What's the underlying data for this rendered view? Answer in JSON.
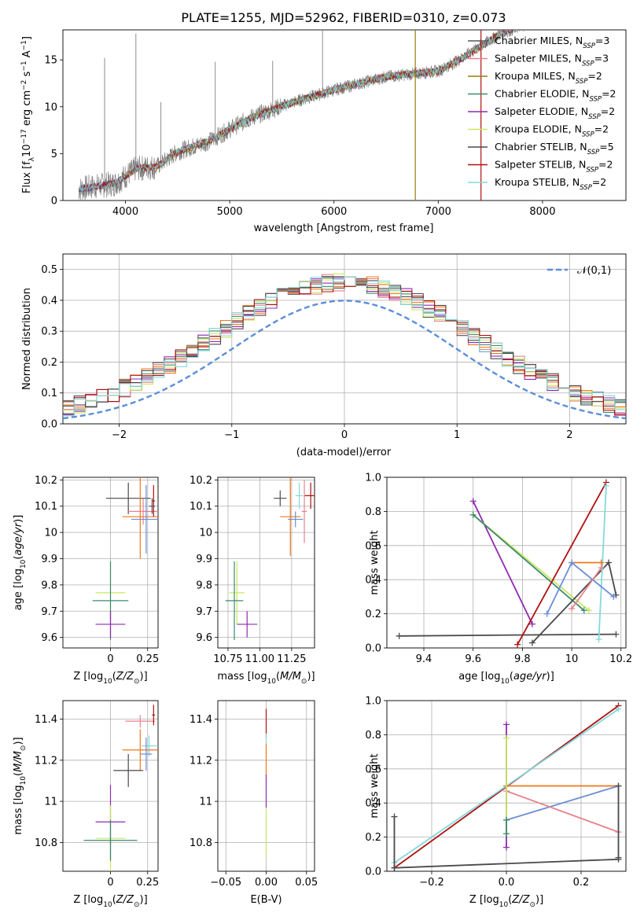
{
  "figure_title": "PLATE=1255, MJD=52962, FIBERID=0310, z=0.073",
  "series_styles": [
    {
      "name": "Chabrier MILES",
      "nssp": "3",
      "color": "#555555"
    },
    {
      "name": "Salpeter MILES",
      "nssp": "3",
      "color": "#e8828c"
    },
    {
      "name": "Kroupa MILES",
      "nssp": "2",
      "color": "#9a7a0a"
    },
    {
      "name": "Chabrier ELODIE",
      "nssp": "2",
      "color": "#3c8a6e"
    },
    {
      "name": "Salpeter ELODIE",
      "nssp": "2",
      "color": "#8e2ab0"
    },
    {
      "name": "Kroupa ELODIE",
      "nssp": "2",
      "color": "#c8e860"
    },
    {
      "name": "Chabrier STELIB",
      "nssp": "5",
      "color": "#4a4a4a"
    },
    {
      "name": "Salpeter STELIB",
      "nssp": "2",
      "color": "#b01010"
    },
    {
      "name": "Kroupa STELIB",
      "nssp": "2",
      "color": "#84d8dc"
    }
  ],
  "chart_data": [
    {
      "id": "spectrum",
      "type": "line",
      "xlabel": "wavelength [Angstrom, rest frame]",
      "ylabel": "Flux [f_λ 10^-17 erg cm^-2 s^-1 A^-1]",
      "xlim": [
        3400,
        8800
      ],
      "ylim": [
        0,
        18.2
      ],
      "xticks": [
        4000,
        5000,
        6000,
        7000,
        8000
      ],
      "yticks": [
        0,
        5,
        10,
        15
      ],
      "data_color": "#808080",
      "continuum": [
        [
          3550,
          1.2
        ],
        [
          3700,
          1.5
        ],
        [
          3900,
          1.8
        ],
        [
          4000,
          2.6
        ],
        [
          4100,
          3.4
        ],
        [
          4300,
          3.6
        ],
        [
          4500,
          5.2
        ],
        [
          4800,
          6.3
        ],
        [
          5000,
          7.6
        ],
        [
          5200,
          8.8
        ],
        [
          5500,
          10.1
        ],
        [
          6000,
          11.8
        ],
        [
          6500,
          13.2
        ],
        [
          7000,
          13.8
        ],
        [
          7200,
          15.0
        ],
        [
          7600,
          17.8
        ],
        [
          8000,
          19.5
        ],
        [
          8800,
          20.5
        ]
      ],
      "lines": [
        {
          "x": 3800,
          "y": 15.2
        },
        {
          "x": 4100,
          "y": 17.8
        },
        {
          "x": 4340,
          "y": 10.5
        },
        {
          "x": 4861,
          "y": 14.8
        },
        {
          "x": 5412,
          "y": 14.9
        },
        {
          "x": 5890,
          "y": 18.2
        }
      ],
      "vlines": [
        {
          "x": 6780,
          "color": "#9a7a0a"
        },
        {
          "x": 7410,
          "color": "#b01010"
        }
      ],
      "model_start": [
        3550,
        3600,
        3700,
        3600,
        3560,
        3880,
        3560,
        3580,
        3560
      ]
    },
    {
      "id": "residuals",
      "type": "bar",
      "xlabel": "(data-model)/error",
      "ylabel": "Normed distribution",
      "xlim": [
        -2.5,
        2.5
      ],
      "ylim": [
        0,
        0.55
      ],
      "xticks": [
        -2,
        -1,
        0,
        1,
        2
      ],
      "yticks": [
        0.0,
        0.1,
        0.2,
        0.3,
        0.4,
        0.5
      ],
      "legend": "𝒩(0,1)",
      "normal_color": "#5b8ed9",
      "bin_width": 0.1,
      "bins_start": -2.5
    },
    {
      "id": "age_vs_z",
      "type": "scatter",
      "xlabel": "Z [log10(Z/Z☉)]",
      "ylabel": "age [log10(age/yr)]",
      "xlim": [
        -0.32,
        0.32
      ],
      "ylim": [
        9.56,
        10.21
      ],
      "xticks": [
        0.0,
        0.25
      ],
      "yticks": [
        9.6,
        9.7,
        9.8,
        9.9,
        10.0,
        10.1,
        10.2
      ],
      "points": [
        {
          "x": 0.12,
          "y": 10.13,
          "ex": 0.15,
          "ey": 0.06,
          "color": "#4a4a4a"
        },
        {
          "x": 0.22,
          "y": 10.08,
          "ex": 0.1,
          "ey": 0.05,
          "color": "#e8828c"
        },
        {
          "x": 0.2,
          "y": 10.06,
          "ex": 0.12,
          "ey": 0.16,
          "color": "#f07818"
        },
        {
          "x": 0.24,
          "y": 10.05,
          "ex": 0.1,
          "ey": 0.13,
          "color": "#6a8ed8"
        },
        {
          "x": 0.29,
          "y": 10.12,
          "ex": 0.01,
          "ey": 0.06,
          "color": "#b01010"
        },
        {
          "x": 0.28,
          "y": 10.1,
          "ex": 0.02,
          "ey": 0.03,
          "color": "#555555"
        },
        {
          "x": 0.0,
          "y": 9.77,
          "ex": 0.1,
          "ey": 0.12,
          "color": "#c8e860"
        },
        {
          "x": 0.0,
          "y": 9.74,
          "ex": 0.12,
          "ey": 0.15,
          "color": "#3c8a6e"
        },
        {
          "x": 0.0,
          "y": 9.65,
          "ex": 0.1,
          "ey": 0.05,
          "color": "#8e2ab0"
        }
      ]
    },
    {
      "id": "age_vs_mass",
      "type": "scatter",
      "xlabel": "mass [log10(M/M☉)]",
      "ylabel": "",
      "xlim": [
        10.67,
        11.43
      ],
      "ylim": [
        9.56,
        10.21
      ],
      "xticks": [
        10.75,
        11.0,
        11.25
      ],
      "xticklabels": [
        "10.75",
        "11.00",
        "11.25"
      ],
      "yticks": [
        9.6,
        9.7,
        9.8,
        9.9,
        10.0,
        10.1,
        10.2
      ],
      "points": [
        {
          "x": 11.16,
          "y": 10.13,
          "ex": 0.05,
          "ey": 0.03,
          "color": "#4a4a4a"
        },
        {
          "x": 11.31,
          "y": 10.14,
          "ex": 0.03,
          "ey": 0.05,
          "color": "#84d8dc"
        },
        {
          "x": 11.24,
          "y": 10.06,
          "ex": 0.08,
          "ey": 0.15,
          "color": "#f07818"
        },
        {
          "x": 11.28,
          "y": 10.05,
          "ex": 0.06,
          "ey": 0.03,
          "color": "#6a8ed8"
        },
        {
          "x": 11.4,
          "y": 10.14,
          "ex": 0.05,
          "ey": 0.05,
          "color": "#b01010"
        },
        {
          "x": 11.35,
          "y": 10.08,
          "ex": 0.02,
          "ey": 0.12,
          "color": "#e8828c"
        },
        {
          "x": 10.82,
          "y": 9.77,
          "ex": 0.06,
          "ey": 0.12,
          "color": "#c8e860"
        },
        {
          "x": 10.8,
          "y": 9.74,
          "ex": 0.07,
          "ey": 0.15,
          "color": "#3c8a6e"
        },
        {
          "x": 10.9,
          "y": 9.65,
          "ex": 0.08,
          "ey": 0.05,
          "color": "#8e2ab0"
        }
      ]
    },
    {
      "id": "weight_vs_age",
      "type": "line",
      "xlabel": "age [log10(age/yr)]",
      "ylabel": "mass weight",
      "xlim": [
        9.25,
        10.22
      ],
      "ylim": [
        0,
        1
      ],
      "xticks": [
        9.4,
        9.6,
        9.8,
        10.0,
        10.2
      ],
      "yticks": [
        0.0,
        0.2,
        0.4,
        0.6,
        0.8,
        1.0
      ],
      "series": [
        {
          "color": "#8e2ab0",
          "points": [
            [
              9.6,
              0.86
            ],
            [
              9.84,
              0.14
            ]
          ]
        },
        {
          "color": "#c8e860",
          "points": [
            [
              9.6,
              0.78
            ],
            [
              10.07,
              0.22
            ]
          ]
        },
        {
          "color": "#3c8a6e",
          "points": [
            [
              9.6,
              0.78
            ],
            [
              10.05,
              0.22
            ]
          ]
        },
        {
          "color": "#4a4a4a",
          "points": [
            [
              9.3,
              0.07
            ],
            [
              10.18,
              0.08
            ]
          ]
        },
        {
          "color": "#4a4a4a",
          "points": [
            [
              9.84,
              0.03
            ],
            [
              10.15,
              0.5
            ],
            [
              10.18,
              0.31
            ]
          ]
        },
        {
          "color": "#b01010",
          "points": [
            [
              9.78,
              0.02
            ],
            [
              10.14,
              0.97
            ]
          ]
        },
        {
          "color": "#84d8dc",
          "points": [
            [
              10.11,
              0.05
            ],
            [
              10.14,
              0.95
            ]
          ]
        },
        {
          "color": "#f07818",
          "points": [
            [
              10.0,
              0.5
            ],
            [
              10.12,
              0.5
            ]
          ]
        },
        {
          "color": "#6a8ed8",
          "points": [
            [
              9.9,
              0.2
            ],
            [
              10.0,
              0.5
            ],
            [
              10.17,
              0.3
            ]
          ]
        },
        {
          "color": "#e8828c",
          "points": [
            [
              10.0,
              0.23
            ],
            [
              10.12,
              0.47
            ]
          ]
        }
      ]
    },
    {
      "id": "mass_vs_z",
      "type": "scatter",
      "xlabel": "Z [log10(Z/Z☉)]",
      "ylabel": "mass [log10(M/M☉)]",
      "xlim": [
        -0.32,
        0.32
      ],
      "ylim": [
        10.66,
        11.49
      ],
      "xticks": [
        0.0,
        0.25
      ],
      "yticks": [
        10.8,
        11.0,
        11.2,
        11.4
      ],
      "points": [
        {
          "x": 0.2,
          "y": 11.39,
          "ex": 0.1,
          "ey": 0.03,
          "color": "#e8828c"
        },
        {
          "x": 0.29,
          "y": 11.42,
          "ex": 0.01,
          "ey": 0.05,
          "color": "#b01010"
        },
        {
          "x": 0.26,
          "y": 11.27,
          "ex": 0.05,
          "ey": 0.05,
          "color": "#84d8dc"
        },
        {
          "x": 0.2,
          "y": 11.25,
          "ex": 0.12,
          "ey": 0.1,
          "color": "#f07818"
        },
        {
          "x": 0.24,
          "y": 11.23,
          "ex": 0.04,
          "ey": 0.08,
          "color": "#6a8ed8"
        },
        {
          "x": 0.12,
          "y": 11.15,
          "ex": 0.1,
          "ey": 0.08,
          "color": "#4a4a4a"
        },
        {
          "x": 0.0,
          "y": 10.9,
          "ex": 0.1,
          "ey": 0.18,
          "color": "#8e2ab0"
        },
        {
          "x": 0.0,
          "y": 10.82,
          "ex": 0.1,
          "ey": 0.16,
          "color": "#c8e860"
        },
        {
          "x": 0.0,
          "y": 10.81,
          "ex": 0.18,
          "ey": 0.1,
          "color": "#3c8a6e"
        }
      ]
    },
    {
      "id": "mass_vs_ebv",
      "type": "scatter",
      "xlabel": "E(B-V)",
      "ylabel": "",
      "xlim": [
        -0.06,
        0.06
      ],
      "ylim": [
        10.66,
        11.49
      ],
      "xticks": [
        -0.05,
        0.0,
        0.05
      ],
      "xticklabels": [
        "−0.05",
        "0.00",
        "0.05"
      ],
      "yticks": [
        10.8,
        11.0,
        11.2,
        11.4
      ],
      "points": [
        {
          "x": 0.0,
          "y": 11.38,
          "ex": 0,
          "ey": 0.07,
          "color": "#b01010"
        },
        {
          "x": 0.0,
          "y": 11.28,
          "ex": 0,
          "ey": 0.05,
          "color": "#84d8dc"
        },
        {
          "x": 0.0,
          "y": 11.2,
          "ex": 0,
          "ey": 0.08,
          "color": "#f07818"
        },
        {
          "x": 0.0,
          "y": 11.05,
          "ex": 0,
          "ey": 0.08,
          "color": "#8e2ab0"
        },
        {
          "x": 0.0,
          "y": 10.85,
          "ex": 0,
          "ey": 0.12,
          "color": "#c8e860"
        }
      ]
    },
    {
      "id": "weight_vs_z",
      "type": "line",
      "xlabel": "Z [log10(Z/Z☉)]",
      "ylabel": "mass weight",
      "xlim": [
        -0.32,
        0.32
      ],
      "ylim": [
        0,
        1
      ],
      "xticks": [
        -0.2,
        0.0,
        0.2
      ],
      "xticklabels": [
        "−0.2",
        "0.0",
        "0.2"
      ],
      "yticks": [
        0.0,
        0.2,
        0.4,
        0.6,
        0.8,
        1.0
      ],
      "series": [
        {
          "color": "#b01010",
          "points": [
            [
              -0.3,
              0.02
            ],
            [
              0.3,
              0.97
            ]
          ]
        },
        {
          "color": "#84d8dc",
          "points": [
            [
              -0.3,
              0.05
            ],
            [
              0.3,
              0.95
            ]
          ]
        },
        {
          "color": "#f07818",
          "points": [
            [
              0.0,
              0.5
            ],
            [
              0.3,
              0.5
            ]
          ]
        },
        {
          "color": "#6a8ed8",
          "points": [
            [
              0.0,
              0.3
            ],
            [
              0.3,
              0.5
            ]
          ]
        },
        {
          "color": "#e8828c",
          "points": [
            [
              0.0,
              0.47
            ],
            [
              0.3,
              0.23
            ]
          ]
        },
        {
          "color": "#4a4a4a",
          "points": [
            [
              -0.3,
              0.02
            ],
            [
              0.3,
              0.07
            ]
          ]
        },
        {
          "color": "#4a4a4a",
          "points": [
            [
              -0.3,
              0.32
            ],
            [
              -0.3,
              0.02
            ]
          ]
        },
        {
          "color": "#4a4a4a",
          "points": [
            [
              0.3,
              0.5
            ],
            [
              0.3,
              0.08
            ]
          ]
        },
        {
          "color": "#8e2ab0",
          "points": [
            [
              0.0,
              0.86
            ],
            [
              0.0,
              0.14
            ]
          ]
        },
        {
          "color": "#c8e860",
          "points": [
            [
              0.0,
              0.78
            ],
            [
              0.0,
              0.22
            ]
          ]
        },
        {
          "color": "#3c8a6e",
          "points": [
            [
              0.0,
              0.3
            ],
            [
              0.0,
              0.22
            ]
          ]
        }
      ]
    }
  ]
}
